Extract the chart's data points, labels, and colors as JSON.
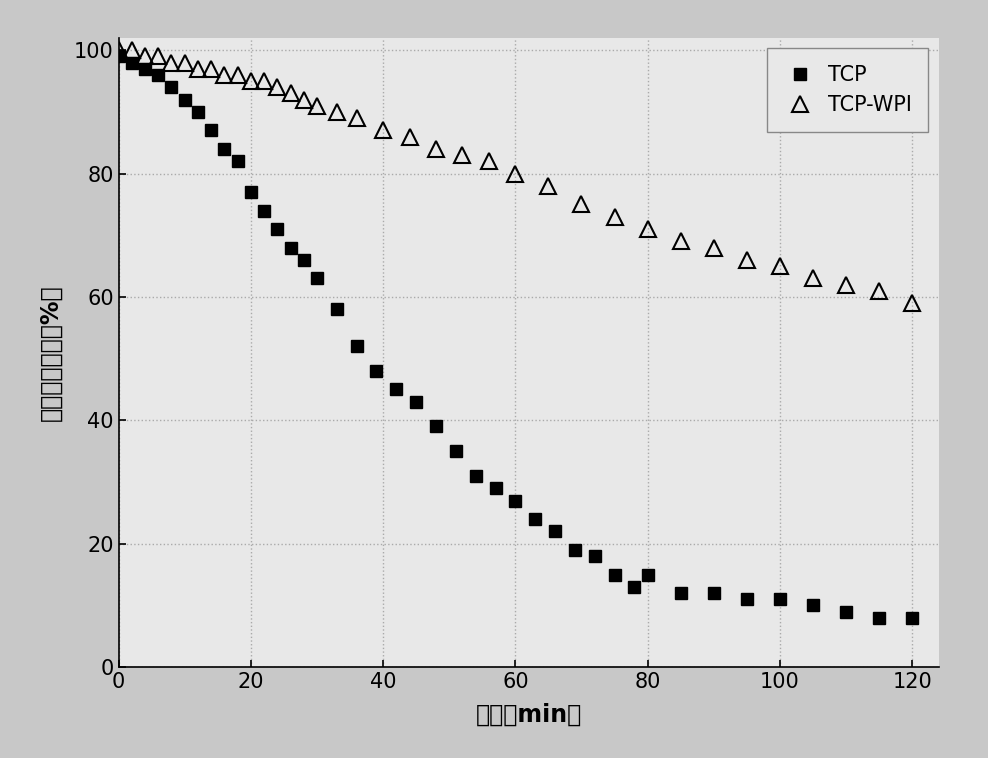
{
  "tcp_x": [
    0,
    2,
    4,
    6,
    8,
    10,
    12,
    14,
    16,
    18,
    20,
    22,
    24,
    26,
    28,
    30,
    33,
    36,
    39,
    42,
    45,
    48,
    51,
    54,
    57,
    60,
    63,
    66,
    69,
    72,
    75,
    78,
    80,
    85,
    90,
    95,
    100,
    105,
    110,
    115,
    120
  ],
  "tcp_y": [
    99,
    98,
    97,
    96,
    94,
    92,
    90,
    87,
    84,
    82,
    77,
    74,
    71,
    68,
    66,
    63,
    58,
    52,
    48,
    45,
    43,
    39,
    35,
    31,
    29,
    27,
    24,
    22,
    19,
    18,
    15,
    13,
    15,
    12,
    12,
    11,
    11,
    10,
    9,
    8,
    8
  ],
  "wpi_x": [
    0,
    2,
    4,
    6,
    8,
    10,
    12,
    14,
    16,
    18,
    20,
    22,
    24,
    26,
    28,
    30,
    33,
    36,
    40,
    44,
    48,
    52,
    56,
    60,
    65,
    70,
    75,
    80,
    85,
    90,
    95,
    100,
    105,
    110,
    115,
    120
  ],
  "wpi_y": [
    100,
    100,
    99,
    99,
    98,
    98,
    97,
    97,
    96,
    96,
    95,
    95,
    94,
    93,
    92,
    91,
    90,
    89,
    87,
    86,
    84,
    83,
    82,
    80,
    78,
    75,
    73,
    71,
    69,
    68,
    66,
    65,
    63,
    62,
    61,
    59
  ],
  "xlabel": "时间（min）",
  "ylabel": "吸光度値变化（%）",
  "xlim": [
    0,
    124
  ],
  "ylim": [
    0,
    102
  ],
  "xticks": [
    0,
    20,
    40,
    60,
    80,
    100,
    120
  ],
  "yticks": [
    0,
    20,
    40,
    60,
    80,
    100
  ],
  "legend_labels": [
    "TCP",
    "TCP-WPI"
  ],
  "figure_facecolor": "#c8c8c8",
  "axes_facecolor": "#e8e8e8",
  "grid_color": "#aaaaaa",
  "marker_size_square": 9,
  "marker_size_triangle": 11,
  "label_fontsize": 17,
  "tick_fontsize": 15,
  "legend_fontsize": 15
}
